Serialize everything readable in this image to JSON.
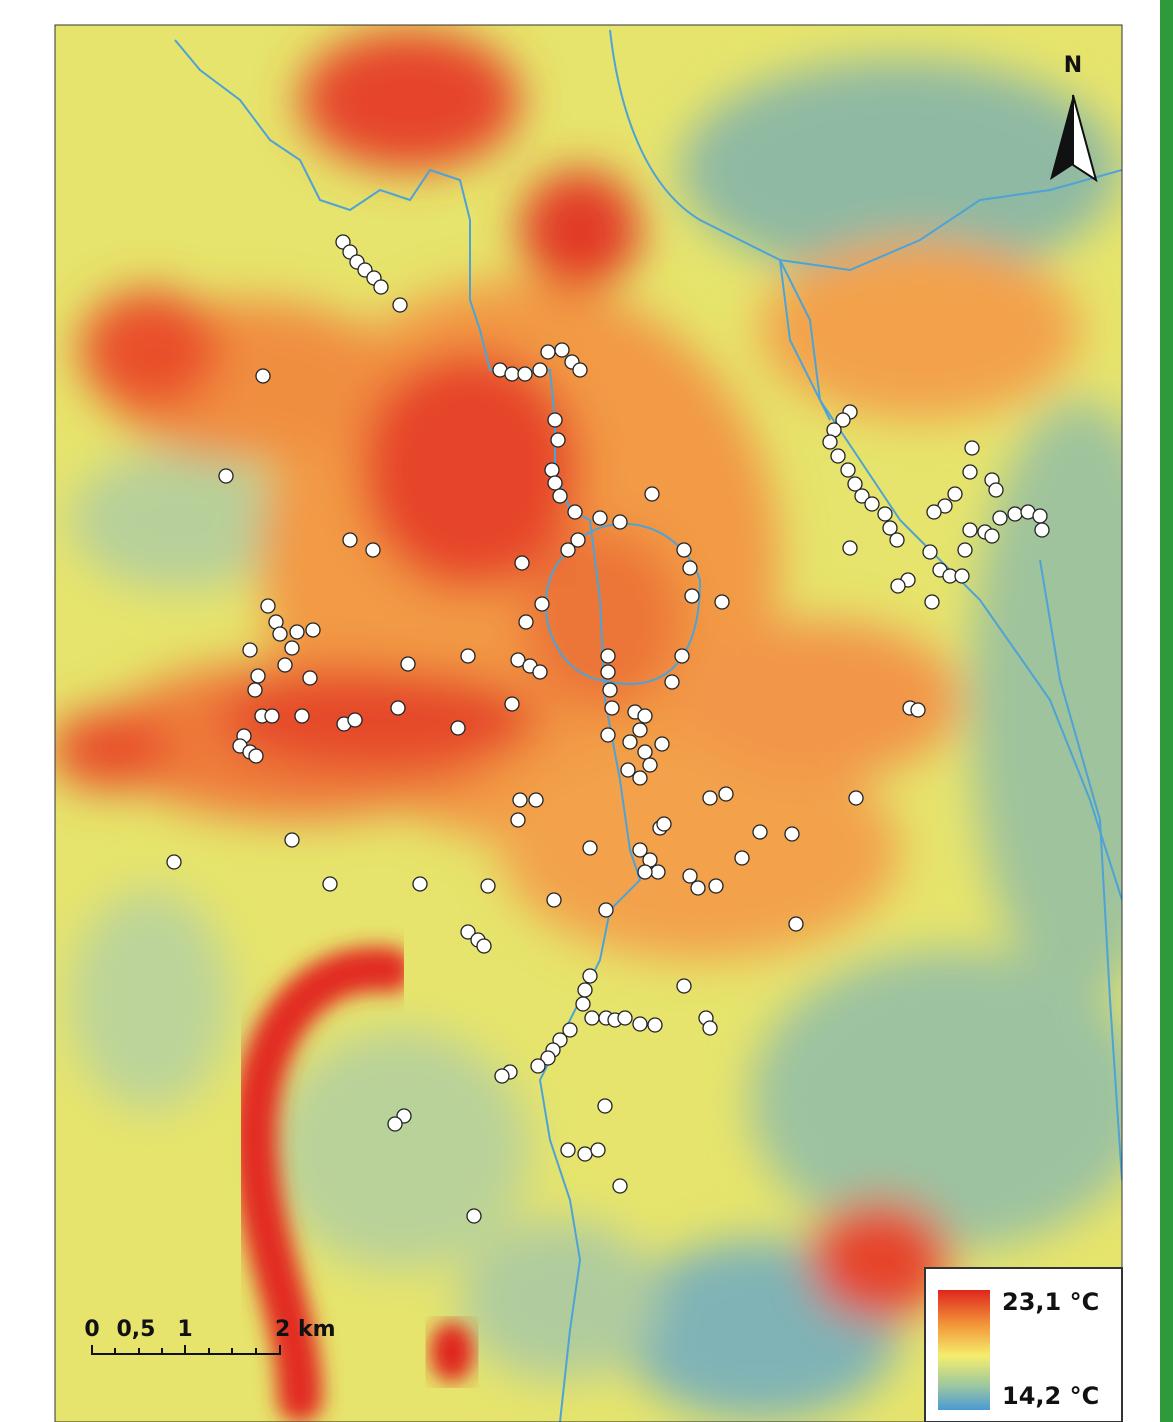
{
  "north_arrow": {
    "label": "N"
  },
  "legend": {
    "max_label": "23,1 °C",
    "min_label": "14,2 °C"
  },
  "scale_bar": {
    "labels": [
      "0",
      "0,5",
      "1",
      "2 km"
    ]
  }
}
